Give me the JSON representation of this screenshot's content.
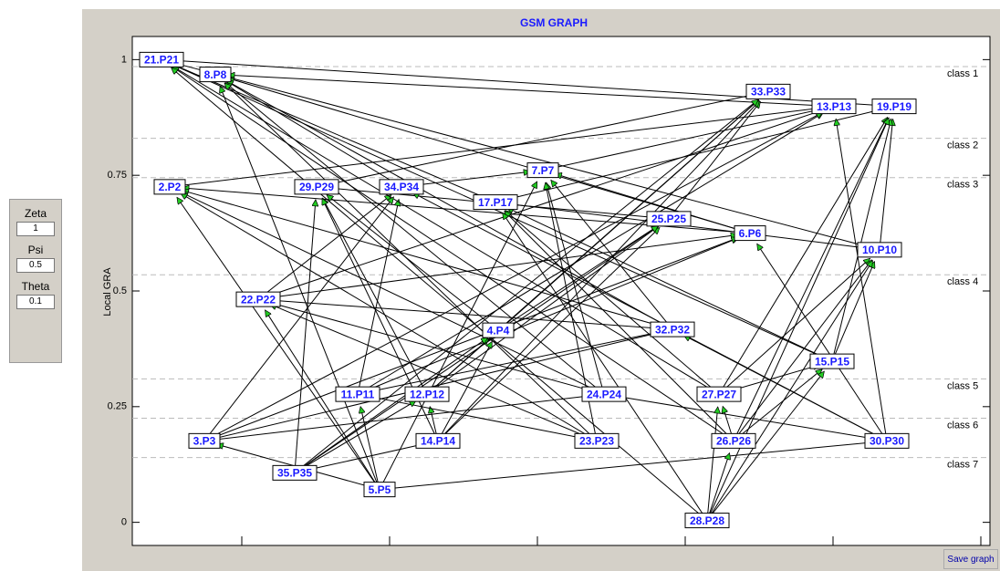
{
  "chart_data": {
    "type": "network",
    "title": "GSM GRAPH",
    "ylabel": "Local GRA",
    "ylim": [
      -0.05,
      1.05
    ],
    "yticks": [
      0,
      0.25,
      0.5,
      0.75,
      1
    ],
    "nodes": [
      {
        "label": "21.P21",
        "value": 1.0
      },
      {
        "label": "8.P8",
        "value": 0.968
      },
      {
        "label": "33.P33",
        "value": 0.931
      },
      {
        "label": "13.P13",
        "value": 0.899
      },
      {
        "label": "19.P19",
        "value": 0.899
      },
      {
        "label": "2.P2",
        "value": 0.725
      },
      {
        "label": "29.P29",
        "value": 0.725
      },
      {
        "label": "34.P34",
        "value": 0.725
      },
      {
        "label": "17.P17",
        "value": 0.692
      },
      {
        "label": "7.P7",
        "value": 0.761
      },
      {
        "label": "25.P25",
        "value": 0.656
      },
      {
        "label": "6.P6",
        "value": 0.625
      },
      {
        "label": "10.P10",
        "value": 0.589
      },
      {
        "label": "22.P22",
        "value": 0.482
      },
      {
        "label": "4.P4",
        "value": 0.415
      },
      {
        "label": "32.P32",
        "value": 0.417
      },
      {
        "label": "15.P15",
        "value": 0.348
      },
      {
        "label": "11.P11",
        "value": 0.277
      },
      {
        "label": "12.P12",
        "value": 0.277
      },
      {
        "label": "24.P24",
        "value": 0.277
      },
      {
        "label": "27.P27",
        "value": 0.277
      },
      {
        "label": "3.P3",
        "value": 0.176
      },
      {
        "label": "14.P14",
        "value": 0.176
      },
      {
        "label": "23.P23",
        "value": 0.176
      },
      {
        "label": "26.P26",
        "value": 0.176
      },
      {
        "label": "30.P30",
        "value": 0.176
      },
      {
        "label": "35.P35",
        "value": 0.107
      },
      {
        "label": "5.P5",
        "value": 0.071
      },
      {
        "label": "28.P28",
        "value": 0.004
      }
    ],
    "classes": [
      {
        "label": "class 1",
        "value": 0.985
      },
      {
        "label": "class 2",
        "value": 0.83
      },
      {
        "label": "class 3",
        "value": 0.745
      },
      {
        "label": "class 4",
        "value": 0.535
      },
      {
        "label": "class 5",
        "value": 0.31
      },
      {
        "label": "class 6",
        "value": 0.225
      },
      {
        "label": "class 7",
        "value": 0.14
      }
    ]
  },
  "controls": {
    "zeta_label": "Zeta",
    "zeta": "1",
    "psi_label": "Psi",
    "psi": "0.5",
    "theta_label": "Theta",
    "theta": "0.1",
    "save": "Save graph"
  }
}
